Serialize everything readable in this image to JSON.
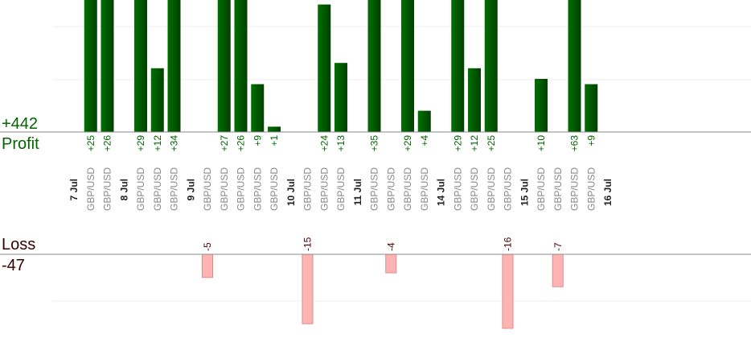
{
  "summary": {
    "profit_total": "+442",
    "profit_label": "Profit",
    "loss_label": "Loss",
    "loss_total": "-47"
  },
  "days": [
    {
      "date": "7 Jul",
      "trades": [
        {
          "pair": "GBP/USD",
          "value": 25,
          "value_label": "+25"
        },
        {
          "pair": "GBP/USD",
          "value": 26,
          "value_label": "+26"
        }
      ]
    },
    {
      "date": "8 Jul",
      "trades": [
        {
          "pair": "GBP/USD",
          "value": 29,
          "value_label": "+29"
        },
        {
          "pair": "GBP/USD",
          "value": 12,
          "value_label": "+12"
        },
        {
          "pair": "GBP/USD",
          "value": 34,
          "value_label": "+34"
        }
      ]
    },
    {
      "date": "9 Jul",
      "trades": [
        {
          "pair": "GBP/USD",
          "value": -5
        },
        {
          "pair": "GBP/USD",
          "value": 27,
          "value_label": "+27"
        },
        {
          "pair": "GBP/USD",
          "value": 26,
          "value_label": "+26"
        },
        {
          "pair": "GBP/USD",
          "value": 9,
          "value_label": "+9"
        },
        {
          "pair": "GBP/USD",
          "value": 1,
          "value_label": "+1"
        }
      ]
    },
    {
      "date": "10 Jul",
      "trades": [
        {
          "pair": "GBP/USD",
          "value": -15
        },
        {
          "pair": "GBP/USD",
          "value": 24,
          "value_label": "+24"
        },
        {
          "pair": "GBP/USD",
          "value": 13,
          "value_label": "+13"
        }
      ]
    },
    {
      "date": "11 Jul",
      "trades": [
        {
          "pair": "GBP/USD",
          "value": 35,
          "value_label": "+35"
        },
        {
          "pair": "GBP/USD",
          "value": -4
        },
        {
          "pair": "GBP/USD",
          "value": 29,
          "value_label": "+29"
        },
        {
          "pair": "GBP/USD",
          "value": 4,
          "value_label": "+4"
        }
      ]
    },
    {
      "date": "14 Jul",
      "trades": [
        {
          "pair": "GBP/USD",
          "value": 29,
          "value_label": "+29"
        },
        {
          "pair": "GBP/USD",
          "value": 12,
          "value_label": "+12"
        },
        {
          "pair": "GBP/USD",
          "value": 25,
          "value_label": "+25"
        },
        {
          "pair": "GBP/USD",
          "value": -16
        }
      ]
    },
    {
      "date": "15 Jul",
      "trades": [
        {
          "pair": "GBP/USD",
          "value": 10,
          "value_label": "+10"
        },
        {
          "pair": "GBP/USD",
          "value": -7
        },
        {
          "pair": "GBP/USD",
          "value": 63,
          "value_label": "+63"
        },
        {
          "pair": "GBP/USD",
          "value": 9,
          "value_label": "+9"
        }
      ]
    },
    {
      "date": "16 Jul",
      "trades": []
    }
  ]
}
